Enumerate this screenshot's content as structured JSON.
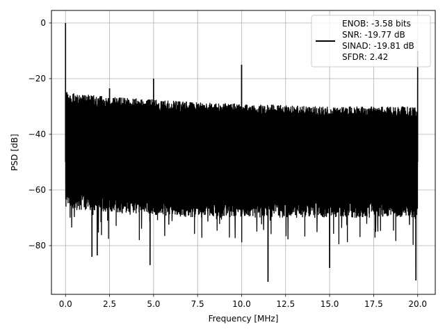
{
  "chart_data": {
    "type": "line",
    "title": "",
    "xlabel": "Frequency [MHz]",
    "ylabel": "PSD [dB]",
    "xlim": [
      -0.8,
      21.0
    ],
    "ylim": [
      -97.5,
      4.5
    ],
    "xticks": [
      0.0,
      2.5,
      5.0,
      7.5,
      10.0,
      12.5,
      15.0,
      17.5,
      20.0
    ],
    "xtick_labels": [
      "0.0",
      "2.5",
      "5.0",
      "7.5",
      "10.0",
      "12.5",
      "15.0",
      "17.5",
      "20.0"
    ],
    "yticks": [
      0,
      -20,
      -40,
      -60,
      -80
    ],
    "ytick_labels": [
      "0",
      "−20",
      "−40",
      "−60",
      "−80"
    ],
    "grid": true,
    "legend": {
      "placement": "upper right",
      "entries": [
        "ENOB: -3.58 bits",
        "SNR: -19.77 dB",
        "SINAD: -19.81 dB",
        "SFDR: 2.42"
      ]
    },
    "series": [
      {
        "color": "#000000",
        "x_range": [
          0.0,
          20.0
        ],
        "noise_floor": {
          "x": [
            0.0,
            0.1,
            2.5,
            5.0,
            7.5,
            10.0,
            12.5,
            15.0,
            17.5,
            20.0
          ],
          "upper": [
            -22,
            -25,
            -26.5,
            -27.5,
            -28.5,
            -29,
            -29.5,
            -30,
            -30,
            -30
          ],
          "lower": [
            -67,
            -67,
            -68,
            -69,
            -70,
            -70,
            -70,
            -70,
            -70,
            -70
          ]
        },
        "peaks": [
          {
            "x": 0.0,
            "y": 0
          },
          {
            "x": 5.0,
            "y": -20
          },
          {
            "x": 10.0,
            "y": -15
          },
          {
            "x": 20.0,
            "y": -10
          },
          {
            "x": 2.5,
            "y": -23.5
          }
        ],
        "dips": [
          {
            "x": 1.5,
            "y": -84
          },
          {
            "x": 1.8,
            "y": -83.5
          },
          {
            "x": 4.8,
            "y": -87
          },
          {
            "x": 11.5,
            "y": -93
          },
          {
            "x": 15.0,
            "y": -88
          },
          {
            "x": 19.9,
            "y": -92.5
          }
        ]
      }
    ]
  }
}
